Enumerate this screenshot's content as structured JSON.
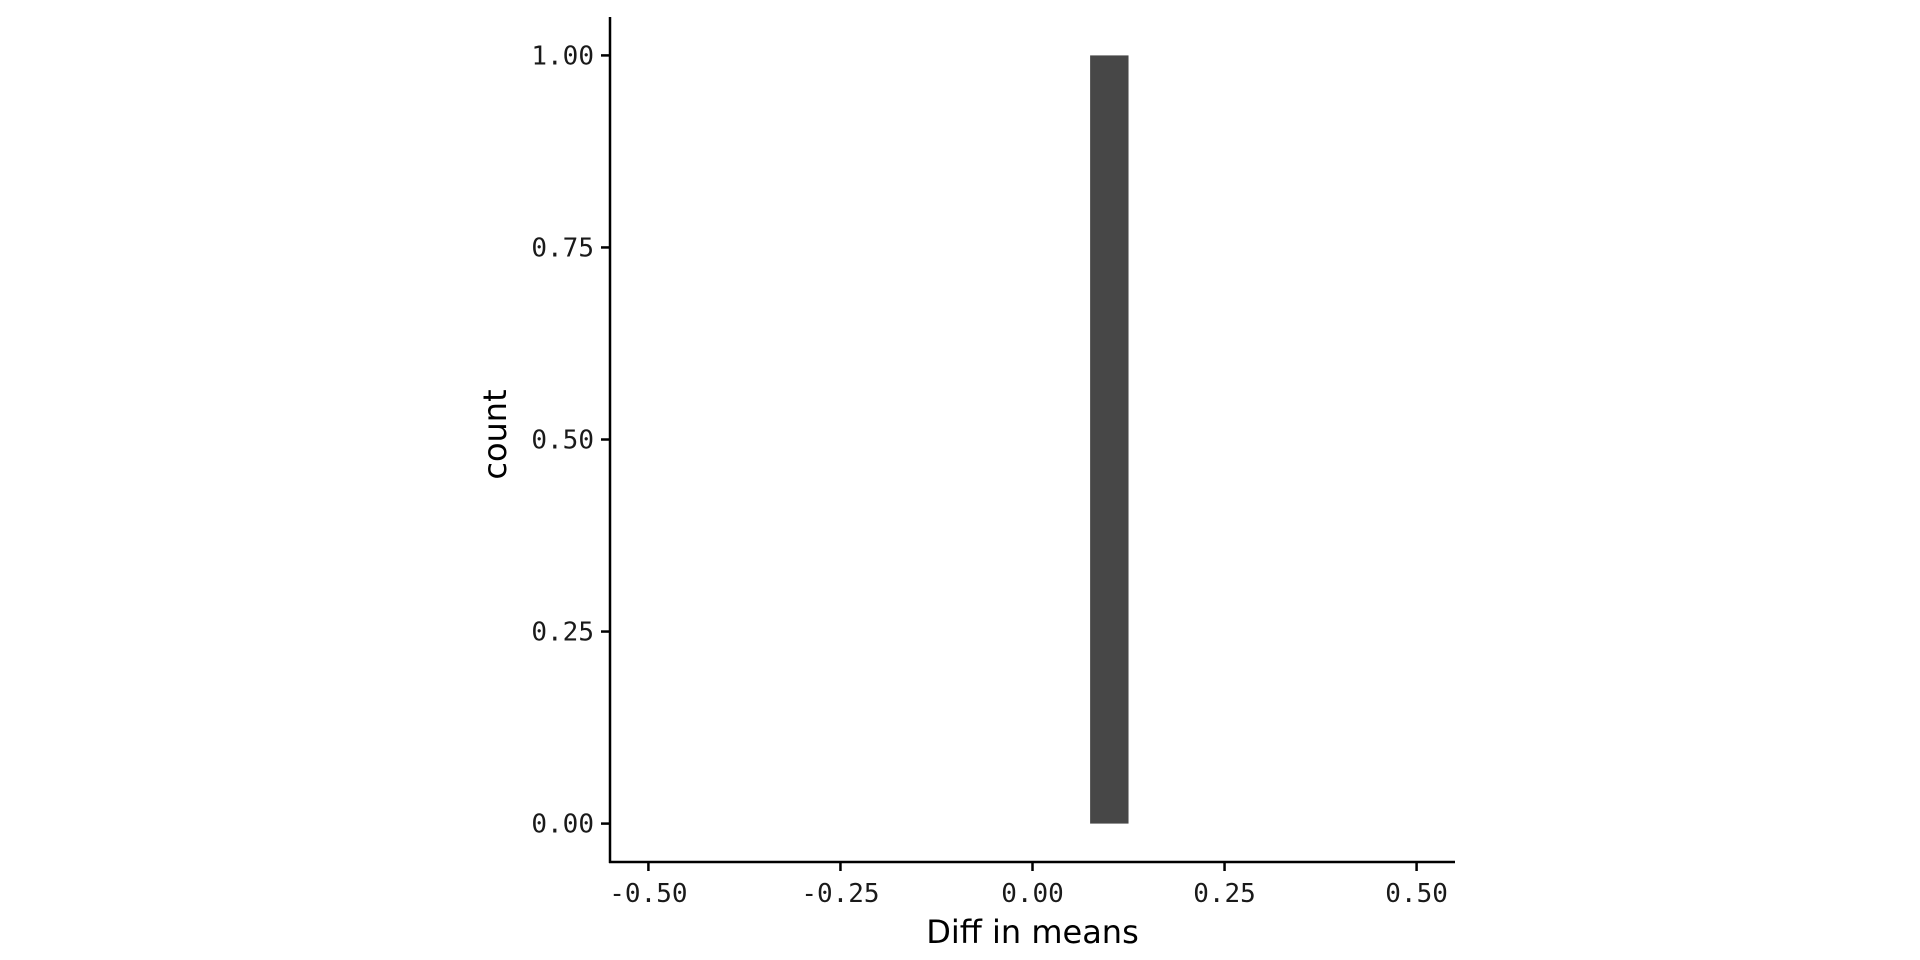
{
  "chart_data": {
    "type": "bar",
    "subtype": "histogram",
    "title": "",
    "xlabel": "Diff in means",
    "ylabel": "count",
    "xlim": [
      -0.55,
      0.55
    ],
    "ylim": [
      -0.05,
      1.05
    ],
    "x_ticks": [
      -0.5,
      -0.25,
      0.0,
      0.25,
      0.5
    ],
    "x_tick_labels": [
      "-0.50",
      "-0.25",
      "0.00",
      "0.25",
      "0.50"
    ],
    "y_ticks": [
      0.0,
      0.25,
      0.5,
      0.75,
      1.0
    ],
    "y_tick_labels": [
      "0.00",
      "0.25",
      "0.50",
      "0.75",
      "1.00"
    ],
    "bins": [
      {
        "x_start": 0.075,
        "x_end": 0.125,
        "count": 1
      }
    ],
    "bar_color": "#474747",
    "grid": false,
    "legend": "none"
  }
}
